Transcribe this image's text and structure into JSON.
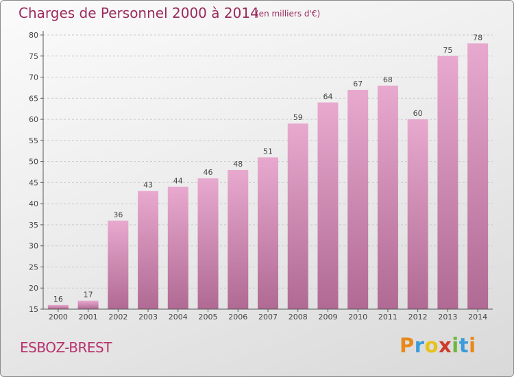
{
  "header": {
    "title": "Charges de Personnel 2000 à 2014",
    "subtitle": "(en milliers d'€)"
  },
  "footer": {
    "place": "ESBOZ-BREST",
    "logo_letters": [
      "P",
      "r",
      "o",
      "x",
      "i",
      "t",
      "i"
    ],
    "logo_colors": [
      "#e8891a",
      "#3a9bd9",
      "#e8c21a",
      "#d03a2a",
      "#6cb83a",
      "#3a9bd9",
      "#e8891a"
    ]
  },
  "colors": {
    "accent": "#9a2a5c",
    "bar_top": "#e8a9cf",
    "bar_bottom": "#b06a93"
  },
  "chart_data": {
    "type": "bar",
    "categories": [
      "2000",
      "2001",
      "2002",
      "2003",
      "2004",
      "2005",
      "2006",
      "2007",
      "2008",
      "2009",
      "2010",
      "2011",
      "2012",
      "2013",
      "2014"
    ],
    "values": [
      16,
      17,
      36,
      43,
      44,
      46,
      48,
      51,
      59,
      64,
      67,
      68,
      60,
      75,
      78
    ],
    "title": "Charges de Personnel 2000 à 2014",
    "subtitle": "(en milliers d'€)",
    "xlabel": "",
    "ylabel": "",
    "ylim": [
      15,
      80
    ],
    "yticks": [
      15,
      20,
      25,
      30,
      35,
      40,
      45,
      50,
      55,
      60,
      65,
      70,
      75,
      80
    ],
    "grid": true
  }
}
